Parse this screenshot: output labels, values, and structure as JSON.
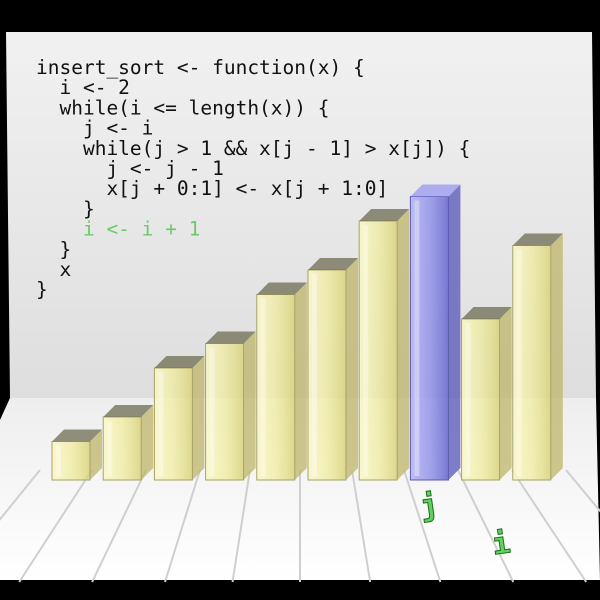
{
  "code_lines": [
    {
      "text": "insert_sort <- function(x) {",
      "highlight": false
    },
    {
      "text": "  i <- 2",
      "highlight": false
    },
    {
      "text": "  while(i <= length(x)) {",
      "highlight": false
    },
    {
      "text": "    j <- i",
      "highlight": false
    },
    {
      "text": "    while(j > 1 && x[j - 1] > x[j]) {",
      "highlight": false
    },
    {
      "text": "      j <- j - 1",
      "highlight": false
    },
    {
      "text": "      x[j + 0:1] <- x[j + 1:0]",
      "highlight": false
    },
    {
      "text": "    }",
      "highlight": false
    },
    {
      "text": "    i <- i + 1",
      "highlight": true
    },
    {
      "text": "  }",
      "highlight": false
    },
    {
      "text": "  x",
      "highlight": false
    },
    {
      "text": "}",
      "highlight": false
    }
  ],
  "bars": {
    "values": [
      1,
      2,
      4,
      5,
      7,
      8,
      10,
      11,
      6,
      9
    ],
    "highlighted_index": 7,
    "colors": {
      "bar": "#f3f0a0",
      "highlight": "#8f8fe8",
      "wall": "#eeeeee",
      "floor": "#f6f6f6"
    }
  },
  "pointers": {
    "j_label": "j",
    "i_label": "i"
  }
}
